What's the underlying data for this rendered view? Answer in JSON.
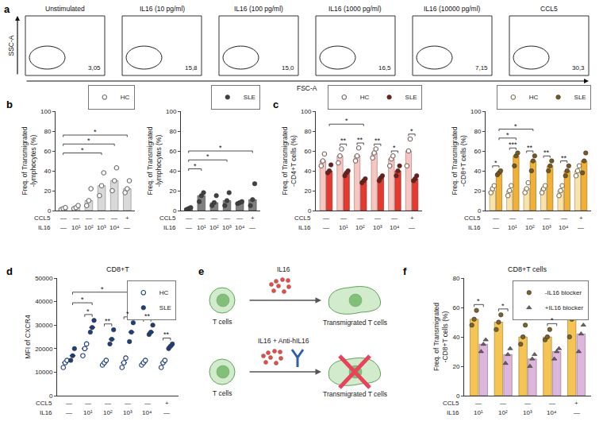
{
  "panel_a": {
    "letter": "a",
    "x_label": "FSC-A",
    "y_label": "SSC-A",
    "plots": [
      {
        "title": "Unstimulated",
        "gate": "3,05"
      },
      {
        "title": "IL16 (10 pg/ml)",
        "gate": "15,8"
      },
      {
        "title": "IL16 (100 pg/ml)",
        "gate": "15,0"
      },
      {
        "title": "IL16 (1000 pg/ml)",
        "gate": "16,5"
      },
      {
        "title": "IL16 (10000 pg/ml)",
        "gate": "7,15"
      },
      {
        "title": "CCL5",
        "gate": "30,3"
      }
    ]
  },
  "panel_e": {
    "letter": "e",
    "rows": [
      {
        "cell": "T cells",
        "stimulus": "IL16",
        "result": "Transmigrated T cells"
      },
      {
        "cell": "T cells",
        "stimulus": "IL16 + Anti-hIL16",
        "result": "Transmigrated T cells"
      }
    ]
  },
  "chart_data": [
    {
      "letter": "b",
      "type": "bar",
      "y_title": "Freq. of Transmigrated -lymphocytes (%)",
      "ylim": [
        0,
        100
      ],
      "yticks": [
        0,
        20,
        40,
        60,
        80,
        100
      ],
      "legend": "above right",
      "tick_rows": [
        {
          "label": "CCL5",
          "values": [
            "—",
            "—",
            "—",
            "—",
            "—",
            "+"
          ]
        },
        {
          "label": "IL16",
          "values": [
            "—",
            "10¹",
            "10²",
            "10³",
            "10⁴",
            "—"
          ]
        }
      ],
      "series": [
        {
          "name": "HC",
          "color": "#d9d9d9",
          "marker": "open circle",
          "values": [
            2,
            3,
            10,
            25,
            30,
            22
          ],
          "points": [
            [
              1,
              2,
              3
            ],
            [
              2,
              3,
              5
            ],
            [
              5,
              10,
              22
            ],
            [
              15,
              25,
              38
            ],
            [
              20,
              30,
              43
            ],
            [
              18,
              22,
              30
            ]
          ]
        }
      ],
      "significance": [
        {
          "text": "*",
          "from": [
            0,
            0
          ],
          "to": [
            3,
            0
          ]
        },
        {
          "text": "*",
          "from": [
            0,
            0
          ],
          "to": [
            4,
            0
          ]
        },
        {
          "text": "*",
          "from": [
            0,
            0
          ],
          "to": [
            5,
            0
          ]
        }
      ]
    },
    {
      "type": "bar",
      "y_title": "Freq. of Transmigrated -lymphocytes (%)",
      "ylim": [
        0,
        100
      ],
      "yticks": [
        0,
        20,
        40,
        60,
        80,
        100
      ],
      "legend": "above right",
      "tick_rows": [
        {
          "label": "CCL5",
          "values": [
            "—",
            "—",
            "—",
            "—",
            "—",
            "+"
          ]
        },
        {
          "label": "IL16",
          "values": [
            "—",
            "10¹",
            "10²",
            "10³",
            "10⁴",
            "—"
          ]
        }
      ],
      "series": [
        {
          "name": "SLE",
          "color": "#808080",
          "marker": "circle",
          "values": [
            2,
            15,
            8,
            10,
            8,
            11
          ],
          "points": [
            [
              1,
              2,
              3
            ],
            [
              9,
              15,
              18
            ],
            [
              5,
              8,
              15
            ],
            [
              5,
              10,
              18
            ],
            [
              7,
              8,
              9
            ],
            [
              5,
              11,
              27
            ]
          ]
        }
      ],
      "significance": [
        {
          "text": "*",
          "from": [
            0,
            0
          ],
          "to": [
            1,
            0
          ]
        },
        {
          "text": "*",
          "from": [
            0,
            0
          ],
          "to": [
            3,
            0
          ]
        },
        {
          "text": "*",
          "from": [
            0,
            0
          ],
          "to": [
            5,
            0
          ]
        }
      ]
    },
    {
      "letter": "c",
      "type": "bar",
      "y_title": "Freq. of Transmigrated -CD4+T cells (%)",
      "ylim": [
        0,
        100
      ],
      "yticks": [
        0,
        20,
        40,
        60,
        80,
        100
      ],
      "legend": "above right",
      "tick_rows": [
        {
          "label": "CCL5",
          "values": [
            "—",
            "—",
            "—",
            "—",
            "—",
            "+"
          ]
        },
        {
          "label": "IL16",
          "values": [
            "—",
            "10¹",
            "10²",
            "10³",
            "10⁴",
            "—"
          ]
        }
      ],
      "series": [
        {
          "name": "HC",
          "color": "#f7c6c1",
          "marker": "open circle",
          "values": [
            50,
            55,
            55,
            58,
            52,
            60
          ],
          "points": [
            [
              45,
              50,
              57
            ],
            [
              48,
              55,
              62
            ],
            [
              50,
              55,
              63
            ],
            [
              53,
              58,
              62
            ],
            [
              45,
              52,
              55
            ],
            [
              45,
              60,
              72
            ]
          ]
        },
        {
          "name": "SLE",
          "color": "#e8392f",
          "marker": "circle",
          "values": [
            40,
            38,
            30,
            33,
            40,
            32
          ],
          "points": [
            [
              38,
              40,
              46
            ],
            [
              35,
              38,
              40
            ],
            [
              28,
              30,
              32
            ],
            [
              30,
              33,
              35
            ],
            [
              35,
              40,
              45
            ],
            [
              30,
              32,
              35
            ]
          ]
        }
      ],
      "significance": [
        {
          "text": "*",
          "from": [
            0,
            1
          ],
          "to": [
            2,
            1
          ]
        },
        {
          "text": "**",
          "from": [
            1,
            0
          ],
          "to": [
            1,
            1
          ]
        },
        {
          "text": "**",
          "from": [
            2,
            0
          ],
          "to": [
            2,
            1
          ]
        },
        {
          "text": "**",
          "from": [
            3,
            0
          ],
          "to": [
            3,
            1
          ]
        },
        {
          "text": "*",
          "from": [
            4,
            0
          ],
          "to": [
            4,
            1
          ]
        },
        {
          "text": "*",
          "from": [
            5,
            0
          ],
          "to": [
            5,
            1
          ]
        }
      ]
    },
    {
      "type": "bar",
      "y_title": "Freq. of Transmigrated -CD8+T cells (%)",
      "ylim": [
        0,
        100
      ],
      "yticks": [
        0,
        20,
        40,
        60,
        80,
        100
      ],
      "legend": "above right",
      "tick_rows": [
        {
          "label": "CCL5",
          "values": [
            "—",
            "—",
            "—",
            "—",
            "—",
            "+"
          ]
        },
        {
          "label": "IL16",
          "values": [
            "—",
            "10¹",
            "10²",
            "10³",
            "10⁴",
            "—"
          ]
        }
      ],
      "series": [
        {
          "name": "HC",
          "color": "#fbe3a8",
          "marker": "open circle",
          "values": [
            20,
            20,
            22,
            22,
            20,
            40
          ],
          "points": [
            [
              18,
              22,
              25
            ],
            [
              15,
              20,
              25
            ],
            [
              18,
              22,
              28
            ],
            [
              18,
              22,
              25
            ],
            [
              15,
              20,
              25
            ],
            [
              35,
              40,
              45
            ]
          ]
        },
        {
          "name": "SLE",
          "color": "#f2b135",
          "marker": "circle",
          "values": [
            38,
            55,
            50,
            45,
            40,
            50
          ],
          "points": [
            [
              36,
              38,
              40
            ],
            [
              45,
              55,
              58
            ],
            [
              40,
              50,
              55
            ],
            [
              40,
              45,
              50
            ],
            [
              35,
              40,
              45
            ],
            [
              38,
              50,
              58
            ]
          ]
        }
      ],
      "significance": [
        {
          "text": "*",
          "from": [
            0,
            1
          ],
          "to": [
            1,
            1
          ]
        },
        {
          "text": "*",
          "from": [
            0,
            1
          ],
          "to": [
            2,
            1
          ]
        },
        {
          "text": "*",
          "from": [
            0,
            0
          ],
          "to": [
            0,
            1
          ]
        },
        {
          "text": "***",
          "from": [
            1,
            0
          ],
          "to": [
            1,
            1
          ]
        },
        {
          "text": "**",
          "from": [
            2,
            0
          ],
          "to": [
            2,
            1
          ]
        },
        {
          "text": "**",
          "from": [
            3,
            0
          ],
          "to": [
            3,
            1
          ]
        },
        {
          "text": "**",
          "from": [
            4,
            0
          ],
          "to": [
            4,
            1
          ]
        }
      ]
    },
    {
      "letter": "d",
      "type": "scatter",
      "title": "CD8+T",
      "y_title": "MFI of CXCR4",
      "ylim": [
        0,
        50000
      ],
      "yticks": [
        0,
        10000,
        20000,
        30000,
        40000,
        50000
      ],
      "legend": "top right",
      "tick_rows": [
        {
          "label": "CCL5",
          "values": [
            "—",
            "—",
            "—",
            "—",
            "—",
            "+"
          ]
        },
        {
          "label": "IL16",
          "values": [
            "—",
            "10¹",
            "10²",
            "10³",
            "10⁴",
            "—"
          ]
        }
      ],
      "series": [
        {
          "name": "HC",
          "color": "#1d3f7c",
          "marker": "open circle",
          "values": [
            14000,
            20000,
            14000,
            14000,
            14000,
            14000
          ],
          "points": [
            [
              12000,
              14000,
              15000
            ],
            [
              17000,
              20000,
              22000
            ],
            [
              13000,
              14000,
              15000
            ],
            [
              12000,
              14000,
              16000
            ],
            [
              13000,
              14000,
              15000
            ],
            [
              12000,
              14000,
              15000
            ]
          ]
        },
        {
          "name": "SLE",
          "color": "#1d3f7c",
          "marker": "circle",
          "values": [
            17000,
            29000,
            24000,
            27000,
            27000,
            21000
          ],
          "points": [
            [
              15000,
              17000,
              20000
            ],
            [
              27000,
              29000,
              32000
            ],
            [
              22000,
              24000,
              28000
            ],
            [
              23000,
              27000,
              31000
            ],
            [
              26000,
              27000,
              30000
            ],
            [
              20000,
              21000,
              22000
            ]
          ]
        }
      ],
      "significance": [
        {
          "text": "*",
          "from": [
            0,
            1
          ],
          "to": [
            1,
            1
          ]
        },
        {
          "text": "*",
          "from": [
            0,
            1
          ],
          "to": [
            3,
            1
          ]
        },
        {
          "text": "*",
          "from": [
            1,
            0
          ],
          "to": [
            1,
            1
          ]
        },
        {
          "text": "**",
          "from": [
            2,
            0
          ],
          "to": [
            2,
            1
          ]
        },
        {
          "text": "*",
          "from": [
            3,
            0
          ],
          "to": [
            3,
            1
          ]
        },
        {
          "text": "**",
          "from": [
            4,
            0
          ],
          "to": [
            4,
            1
          ]
        },
        {
          "text": "**",
          "from": [
            5,
            0
          ],
          "to": [
            5,
            1
          ]
        }
      ]
    },
    {
      "letter": "f",
      "type": "bar",
      "title": "CD8+T cells",
      "y_title": "Freq. of Transmigrated -CD8+T cells (%)",
      "ylim": [
        0,
        80
      ],
      "yticks": [
        0,
        20,
        40,
        60,
        80
      ],
      "legend": "top right",
      "tick_rows": [
        {
          "label": "CCL5",
          "values": [
            "—",
            "—",
            "—",
            "—",
            "+"
          ]
        },
        {
          "label": "IL16",
          "values": [
            "10¹",
            "10²",
            "10³",
            "10⁴",
            "—"
          ]
        }
      ],
      "series": [
        {
          "name": "-IL16 blocker",
          "color": "#f6c453",
          "marker": "circle",
          "values": [
            52,
            50,
            40,
            40,
            52
          ],
          "points": [
            [
              48,
              52,
              58
            ],
            [
              45,
              50,
              55
            ],
            [
              35,
              40,
              48
            ],
            [
              38,
              40,
              45
            ],
            [
              40,
              52,
              58
            ]
          ]
        },
        {
          "name": "+IL16 blocker",
          "color": "#dcb6dc",
          "marker": "triangle",
          "values": [
            35,
            28,
            25,
            30,
            42
          ],
          "points": [
            [
              30,
              35,
              38
            ],
            [
              22,
              28,
              32
            ],
            [
              20,
              25,
              28
            ],
            [
              25,
              30,
              32
            ],
            [
              30,
              42,
              48
            ]
          ]
        }
      ],
      "significance": [
        {
          "text": "*",
          "from": [
            0,
            0
          ],
          "to": [
            0,
            1
          ]
        },
        {
          "text": "*",
          "from": [
            1,
            0
          ],
          "to": [
            1,
            1
          ]
        },
        {
          "text": "*",
          "from": [
            3,
            0
          ],
          "to": [
            3,
            1
          ]
        }
      ]
    }
  ]
}
